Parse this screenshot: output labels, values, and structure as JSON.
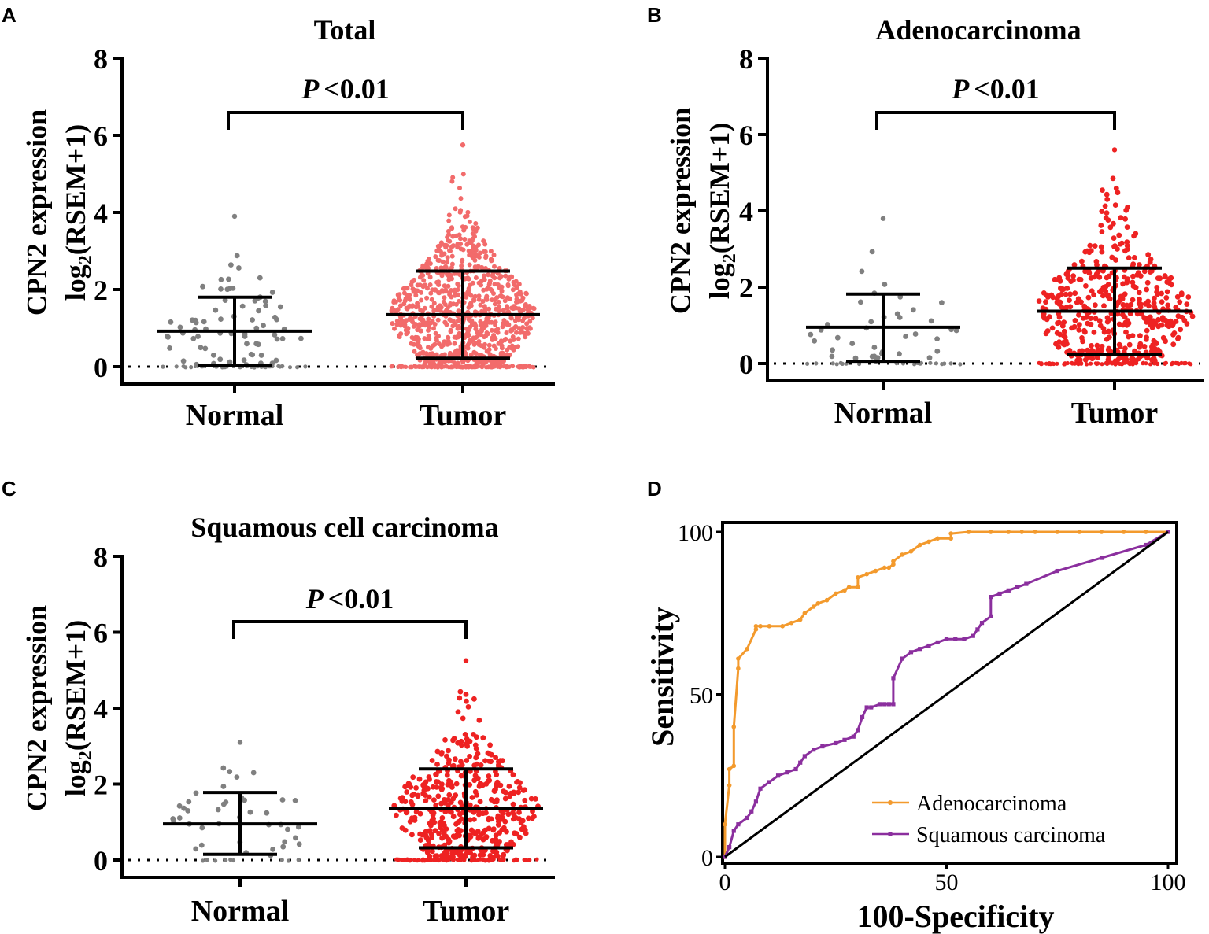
{
  "chart_data": [
    {
      "panel": "A",
      "type": "scatter",
      "title": "Total",
      "ylabel_line1": "CPN2 expression",
      "ylabel_line2_pre": "log",
      "ylabel_line2_sub": "2",
      "ylabel_line2_post": "(RSEM+1)",
      "ylim": [
        0,
        8
      ],
      "yticks": [
        "0",
        "2",
        "4",
        "6",
        "8"
      ],
      "categories": [
        "Normal",
        "Tumor"
      ],
      "pvalue_label": "P",
      "pvalue_text": "<0.01",
      "groups": [
        {
          "name": "Normal",
          "color": "#808080",
          "mean": 0.92,
          "sd_low": 0.02,
          "sd_high": 1.8,
          "max": 3.9,
          "zero_fraction": 0.35,
          "n": 110
        },
        {
          "name": "Tumor",
          "color": "#f26b6b",
          "mean": 1.35,
          "sd_low": 0.22,
          "sd_high": 2.48,
          "max": 5.75,
          "zero_fraction": 0.15,
          "n": 1000
        }
      ]
    },
    {
      "panel": "B",
      "type": "scatter",
      "title": "Adenocarcinoma",
      "ylabel_line1": "CPN2 expression",
      "ylabel_line2_pre": "log",
      "ylabel_line2_sub": "2",
      "ylabel_line2_post": "(RSEM+1)",
      "ylim": [
        0,
        8
      ],
      "yticks": [
        "0",
        "2",
        "4",
        "6",
        "8"
      ],
      "categories": [
        "Normal",
        "Tumor"
      ],
      "pvalue_label": "P",
      "pvalue_text": "<0.01",
      "groups": [
        {
          "name": "Normal",
          "color": "#808080",
          "mean": 0.95,
          "sd_low": 0.06,
          "sd_high": 1.82,
          "max": 3.8,
          "zero_fraction": 0.35,
          "n": 58
        },
        {
          "name": "Tumor",
          "color": "#ee2222",
          "mean": 1.37,
          "sd_low": 0.24,
          "sd_high": 2.5,
          "max": 5.6,
          "zero_fraction": 0.15,
          "n": 520
        }
      ]
    },
    {
      "panel": "C",
      "type": "scatter",
      "title": "Squamous cell carcinoma",
      "ylabel_line1": "CPN2 expression",
      "ylabel_line2_pre": "log",
      "ylabel_line2_sub": "2",
      "ylabel_line2_post": "(RSEM+1)",
      "ylim": [
        0,
        8
      ],
      "yticks": [
        "0",
        "2",
        "4",
        "6",
        "8"
      ],
      "categories": [
        "Normal",
        "Tumor"
      ],
      "pvalue_label": "P",
      "pvalue_text": "<0.01",
      "groups": [
        {
          "name": "Normal",
          "color": "#808080",
          "mean": 0.95,
          "sd_low": 0.15,
          "sd_high": 1.78,
          "max": 3.1,
          "zero_fraction": 0.2,
          "n": 50
        },
        {
          "name": "Tumor",
          "color": "#ee2222",
          "mean": 1.35,
          "sd_low": 0.32,
          "sd_high": 2.4,
          "max": 5.25,
          "zero_fraction": 0.15,
          "n": 500
        }
      ]
    },
    {
      "panel": "D",
      "type": "line",
      "xlabel": "100-Specificity",
      "ylabel": "Sensitivity",
      "xlim": [
        0,
        100
      ],
      "ylim": [
        0,
        100
      ],
      "xticks": [
        "0",
        "50",
        "100"
      ],
      "yticks": [
        "0",
        "50",
        "100"
      ],
      "legend_position": "bottom-right",
      "series": [
        {
          "name": "Adenocarcinoma",
          "color": "#f39a2d",
          "marker": "circle",
          "x": [
            0,
            0,
            1,
            1,
            2,
            2,
            3,
            3,
            5,
            7,
            7,
            8,
            10,
            13,
            15,
            17,
            18,
            20,
            21,
            23,
            25,
            27,
            28,
            30,
            30,
            32,
            34,
            36,
            37,
            38,
            38,
            40,
            42,
            44,
            46,
            48,
            51,
            51,
            55,
            60,
            64,
            67,
            70,
            75,
            80,
            85,
            90,
            95,
            100
          ],
          "y": [
            0,
            10,
            22,
            27,
            28,
            40,
            58,
            61,
            64,
            70,
            71,
            71,
            71,
            71,
            72,
            73,
            75,
            77,
            78,
            79,
            81,
            82,
            83,
            83,
            86,
            87,
            88,
            89,
            89,
            90,
            91,
            93,
            94,
            96,
            97,
            98,
            98,
            99.5,
            100,
            100,
            100,
            100,
            100,
            100,
            100,
            100,
            100,
            100,
            100
          ]
        },
        {
          "name": "Squamous carcinoma",
          "color": "#8b2f9e",
          "marker": "square",
          "x": [
            0,
            1,
            2,
            3,
            5,
            6,
            7,
            8,
            10,
            12,
            14,
            16,
            17,
            18,
            20,
            22,
            25,
            27,
            29,
            30,
            31,
            32,
            33,
            35,
            36,
            37,
            38,
            38,
            40,
            42,
            44,
            46,
            48,
            50,
            52,
            54,
            56,
            57,
            58,
            60,
            60,
            62,
            64,
            66,
            68,
            75,
            85,
            95,
            100
          ],
          "y": [
            0,
            3,
            8,
            10,
            12,
            14,
            17,
            21,
            23,
            25,
            26,
            27,
            29,
            31,
            33,
            34,
            35,
            36,
            37,
            39,
            43,
            46,
            46,
            47,
            47,
            47,
            47,
            55,
            61,
            63,
            64,
            65,
            66,
            67,
            67,
            67,
            68,
            70,
            72,
            74,
            80,
            81,
            82,
            83,
            84,
            88,
            92,
            96,
            100
          ]
        },
        {
          "name": "reference",
          "color": "#000000",
          "marker": "none",
          "x": [
            0,
            100
          ],
          "y": [
            0,
            100
          ]
        }
      ]
    }
  ]
}
